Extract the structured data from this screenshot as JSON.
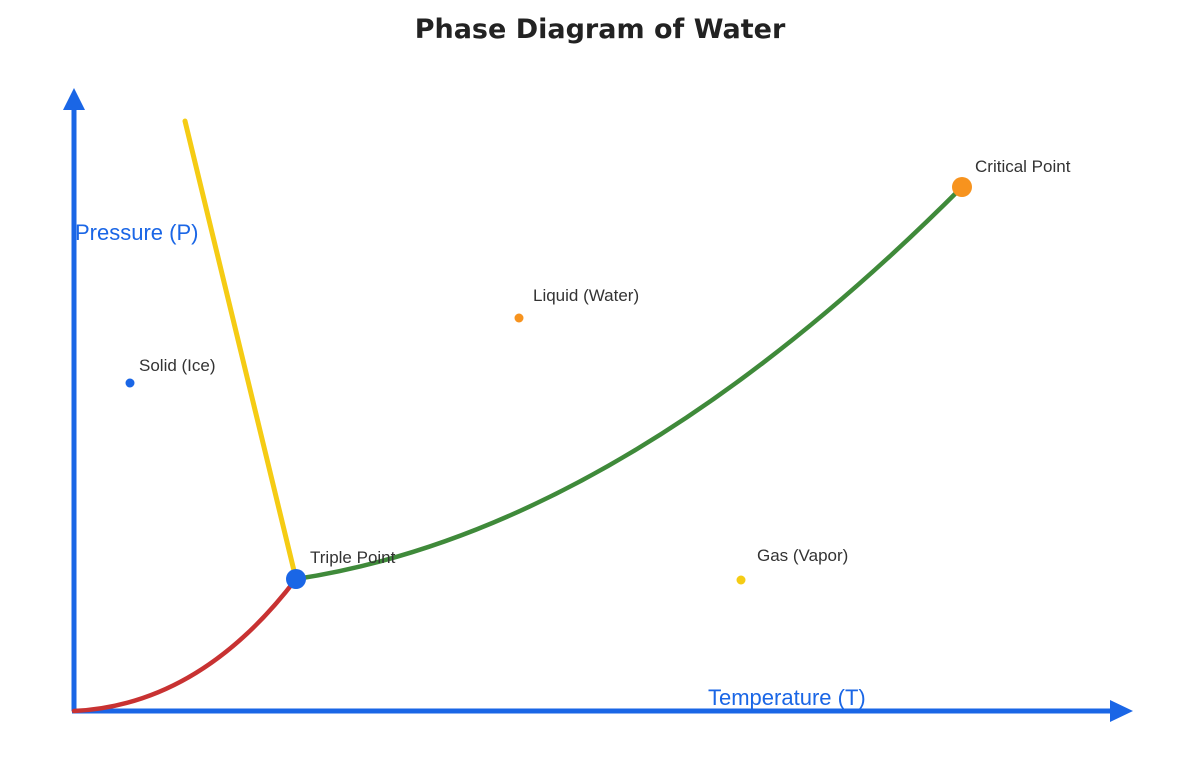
{
  "title": "Phase Diagram of Water",
  "axes": {
    "y_label": "Pressure (P)",
    "x_label": "Temperature (T)"
  },
  "points": {
    "triple": "Triple Point",
    "critical": "Critical Point"
  },
  "regions": {
    "solid": "Solid (Ice)",
    "liquid": "Liquid (Water)",
    "gas": "Gas (Vapor)"
  },
  "colors": {
    "axis": "#1a66e6",
    "fusion_curve": "#f5cc14",
    "vaporization_curve": "#3f8a3a",
    "sublimation_curve": "#c83232",
    "triple_point": "#1a66e6",
    "critical_point": "#f7931e",
    "solid_marker": "#1a66e6",
    "liquid_marker": "#f7931e",
    "gas_marker": "#f5cc14"
  }
}
